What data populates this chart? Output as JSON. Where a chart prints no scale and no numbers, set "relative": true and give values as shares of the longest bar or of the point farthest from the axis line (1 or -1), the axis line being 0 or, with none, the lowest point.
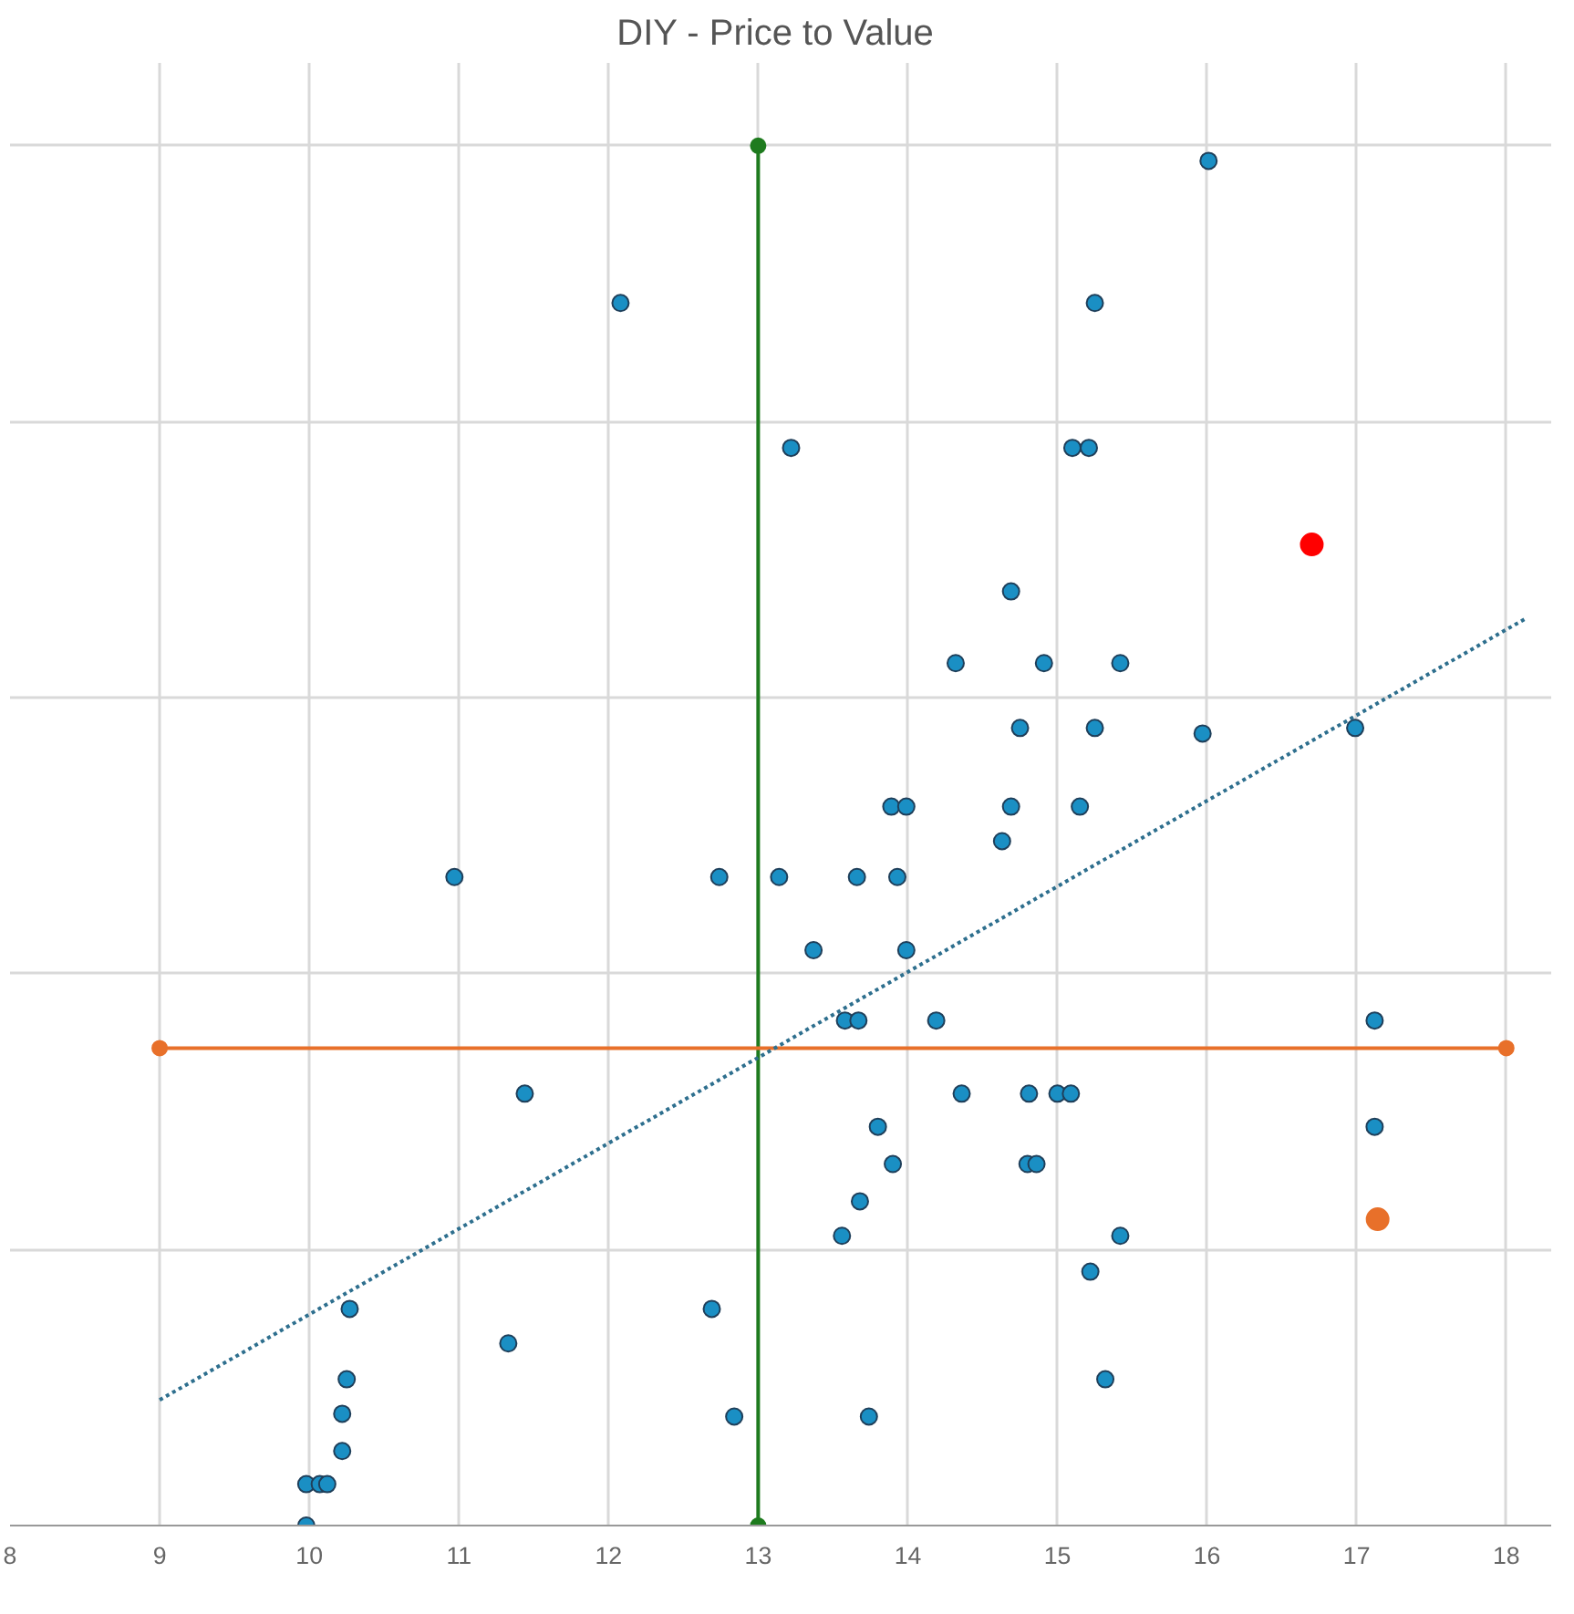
{
  "chart_data": {
    "type": "scatter",
    "title": "DIY -  Price to Value",
    "relative": true,
    "xlim": [
      8,
      18.3
    ],
    "xticks": [
      8,
      9,
      10,
      11,
      12,
      13,
      14,
      15,
      16,
      17,
      18
    ],
    "tick_labels": "x",
    "grid": true,
    "marker": "circle",
    "series": [
      {
        "color": "#1a8fc4",
        "x": [
          16.01,
          12.08,
          15.25,
          13.22,
          15.1,
          15.21,
          14.69,
          14.32,
          14.91,
          15.42,
          14.75,
          15.25,
          15.97,
          16.99,
          13.89,
          13.99,
          14.69,
          15.15,
          14.63,
          10.97,
          12.74,
          13.14,
          13.66,
          13.93,
          13.37,
          13.99,
          13.58,
          13.67,
          14.19,
          17.12,
          11.44,
          14.36,
          14.81,
          15.0,
          15.09,
          13.8,
          17.12,
          13.9,
          14.8,
          14.86,
          13.68,
          13.56,
          15.42,
          15.22,
          10.27,
          12.69,
          11.33,
          10.25,
          15.32,
          10.22,
          12.84,
          13.74,
          10.22,
          9.98,
          10.07,
          10.12,
          9.98
        ],
        "values": [
          0.989,
          0.886,
          0.886,
          0.781,
          0.781,
          0.781,
          0.677,
          0.625,
          0.625,
          0.625,
          0.578,
          0.578,
          0.574,
          0.578,
          0.521,
          0.521,
          0.521,
          0.521,
          0.496,
          0.47,
          0.47,
          0.47,
          0.47,
          0.47,
          0.417,
          0.417,
          0.366,
          0.366,
          0.366,
          0.366,
          0.313,
          0.313,
          0.313,
          0.313,
          0.313,
          0.289,
          0.289,
          0.262,
          0.262,
          0.262,
          0.235,
          0.21,
          0.21,
          0.184,
          0.157,
          0.157,
          0.132,
          0.106,
          0.106,
          0.081,
          0.079,
          0.079,
          0.054,
          0.03,
          0.03,
          0.03,
          0.0
        ]
      },
      {
        "type": "scatter",
        "color": "#ff0000",
        "x": [
          16.7
        ],
        "values": [
          0.711
        ]
      },
      {
        "type": "scatter",
        "color": "#e8702a",
        "x": [
          17.14
        ],
        "values": [
          0.222
        ]
      },
      {
        "type": "line",
        "color": "#1e7b1e",
        "marker": "circle",
        "x": [
          13,
          13
        ],
        "values": [
          0,
          1
        ]
      },
      {
        "type": "line",
        "color": "#e8702a",
        "marker": "circle",
        "x": [
          9,
          18
        ],
        "values": [
          0.346,
          0.346
        ]
      },
      {
        "type": "line",
        "color": "#2e6f8e",
        "marker": "none",
        "line_style": "dotted",
        "x": [
          9,
          18.14
        ],
        "values": [
          0.091,
          0.658
        ]
      }
    ]
  }
}
